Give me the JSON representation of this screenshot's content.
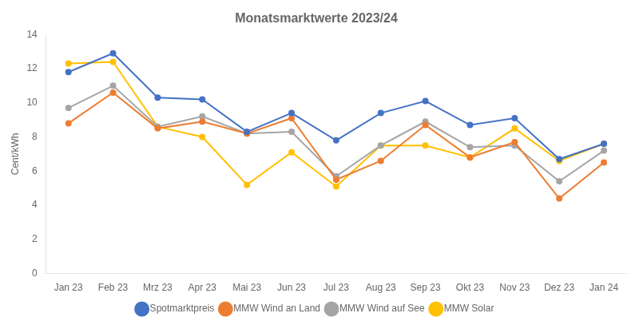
{
  "chart_data": {
    "type": "line",
    "title": "Monatsmarktwerte 2023/24",
    "ylabel": "Cent/kWh",
    "categories": [
      "Jan 23",
      "Feb 23",
      "Mrz 23",
      "Apr 23",
      "Mai 23",
      "Jun 23",
      "Jul 23",
      "Aug 23",
      "Sep 23",
      "Okt 23",
      "Nov 23",
      "Dez 23",
      "Jan 24"
    ],
    "series": [
      {
        "name": "Spotmarktpreis",
        "color": "#4472C4",
        "marker": "circle",
        "values": [
          11.8,
          12.9,
          10.3,
          10.2,
          8.3,
          9.4,
          7.8,
          9.4,
          10.1,
          8.7,
          9.1,
          6.7,
          7.6
        ]
      },
      {
        "name": "MMW Wind an Land",
        "color": "#ED7D31",
        "marker": "circle",
        "values": [
          8.8,
          10.6,
          8.5,
          8.9,
          8.2,
          9.1,
          5.5,
          6.6,
          8.7,
          6.8,
          7.7,
          4.4,
          6.5
        ]
      },
      {
        "name": "MMW Wind auf See",
        "color": "#A5A5A5",
        "marker": "circle",
        "values": [
          9.7,
          11.0,
          8.6,
          9.2,
          8.2,
          8.3,
          5.7,
          7.5,
          8.9,
          7.4,
          7.5,
          5.4,
          7.2
        ]
      },
      {
        "name": "MMW Solar",
        "color": "#FFC000",
        "marker": "circle",
        "values": [
          12.3,
          12.4,
          8.6,
          8.0,
          5.2,
          7.1,
          5.1,
          7.5,
          7.5,
          6.8,
          8.5,
          6.6,
          7.6
        ]
      }
    ],
    "ylim": [
      0,
      14
    ],
    "yticks": [
      0,
      2,
      4,
      6,
      8,
      10,
      12,
      14
    ],
    "grid": false,
    "legend": "bottom"
  }
}
